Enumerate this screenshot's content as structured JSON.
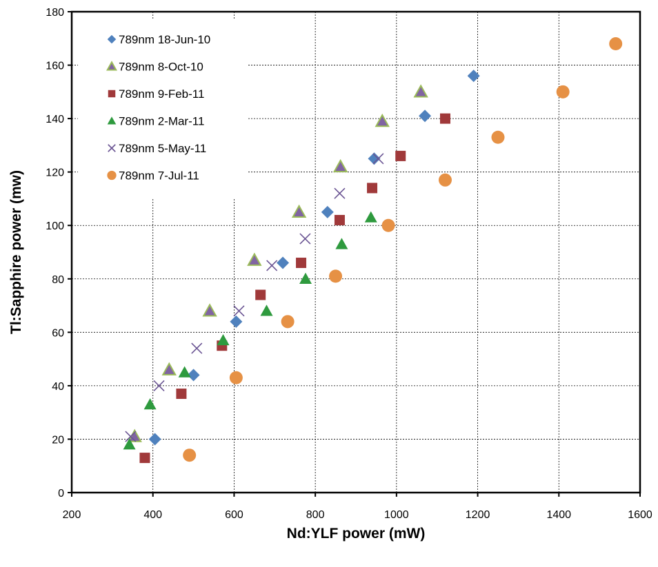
{
  "chart_data": {
    "type": "scatter",
    "xlabel": "Nd:YLF power (mW)",
    "ylabel": "Tl:Sapphire power (mw)",
    "xlim": [
      200,
      1600
    ],
    "ylim": [
      0,
      180
    ],
    "x_ticks": [
      200,
      400,
      600,
      800,
      1000,
      1200,
      1400,
      1600
    ],
    "y_ticks": [
      0,
      20,
      40,
      60,
      80,
      100,
      120,
      140,
      160,
      180
    ],
    "grid": true,
    "legend_position": "top-left",
    "series": [
      {
        "name": "789nm 18-Jun-10",
        "marker": "diamond",
        "color": "#4F81BD",
        "points": [
          [
            405,
            20
          ],
          [
            500,
            44
          ],
          [
            605,
            64
          ],
          [
            720,
            86
          ],
          [
            830,
            105
          ],
          [
            945,
            125
          ],
          [
            1070,
            141
          ],
          [
            1190,
            156
          ]
        ]
      },
      {
        "name": "789nm 8-Oct-10",
        "marker": "triangle",
        "color": "#8064A2",
        "edge_color": "#9BBB59",
        "points": [
          [
            355,
            21
          ],
          [
            440,
            46
          ],
          [
            540,
            68
          ],
          [
            650,
            87
          ],
          [
            760,
            105
          ],
          [
            862,
            122
          ],
          [
            965,
            139
          ],
          [
            1060,
            150
          ]
        ]
      },
      {
        "name": "789nm 9-Feb-11",
        "marker": "square",
        "color": "#A0393A",
        "points": [
          [
            380,
            13
          ],
          [
            470,
            37
          ],
          [
            570,
            55
          ],
          [
            665,
            74
          ],
          [
            765,
            86
          ],
          [
            860,
            102
          ],
          [
            940,
            114
          ],
          [
            1010,
            126
          ],
          [
            1120,
            140
          ]
        ]
      },
      {
        "name": "789nm 2-Mar-11",
        "marker": "triangle",
        "color": "#2E9A3E",
        "points": [
          [
            342,
            18
          ],
          [
            393,
            33
          ],
          [
            478,
            45
          ],
          [
            573,
            57
          ],
          [
            680,
            68
          ],
          [
            776,
            80
          ],
          [
            865,
            93
          ],
          [
            937,
            103
          ]
        ]
      },
      {
        "name": "789nm 5-May-11",
        "marker": "x",
        "color": "#6A5493",
        "points": [
          [
            345,
            21
          ],
          [
            415,
            40
          ],
          [
            508,
            54
          ],
          [
            612,
            68
          ],
          [
            693,
            85
          ],
          [
            775,
            95
          ],
          [
            860,
            112
          ],
          [
            955,
            125
          ]
        ]
      },
      {
        "name": "789nm 7-Jul-11",
        "marker": "circle",
        "color": "#E69145",
        "points": [
          [
            490,
            14
          ],
          [
            605,
            43
          ],
          [
            732,
            64
          ],
          [
            850,
            81
          ],
          [
            980,
            100
          ],
          [
            1120,
            117
          ],
          [
            1250,
            133
          ],
          [
            1410,
            150
          ],
          [
            1540,
            168
          ]
        ]
      }
    ]
  }
}
